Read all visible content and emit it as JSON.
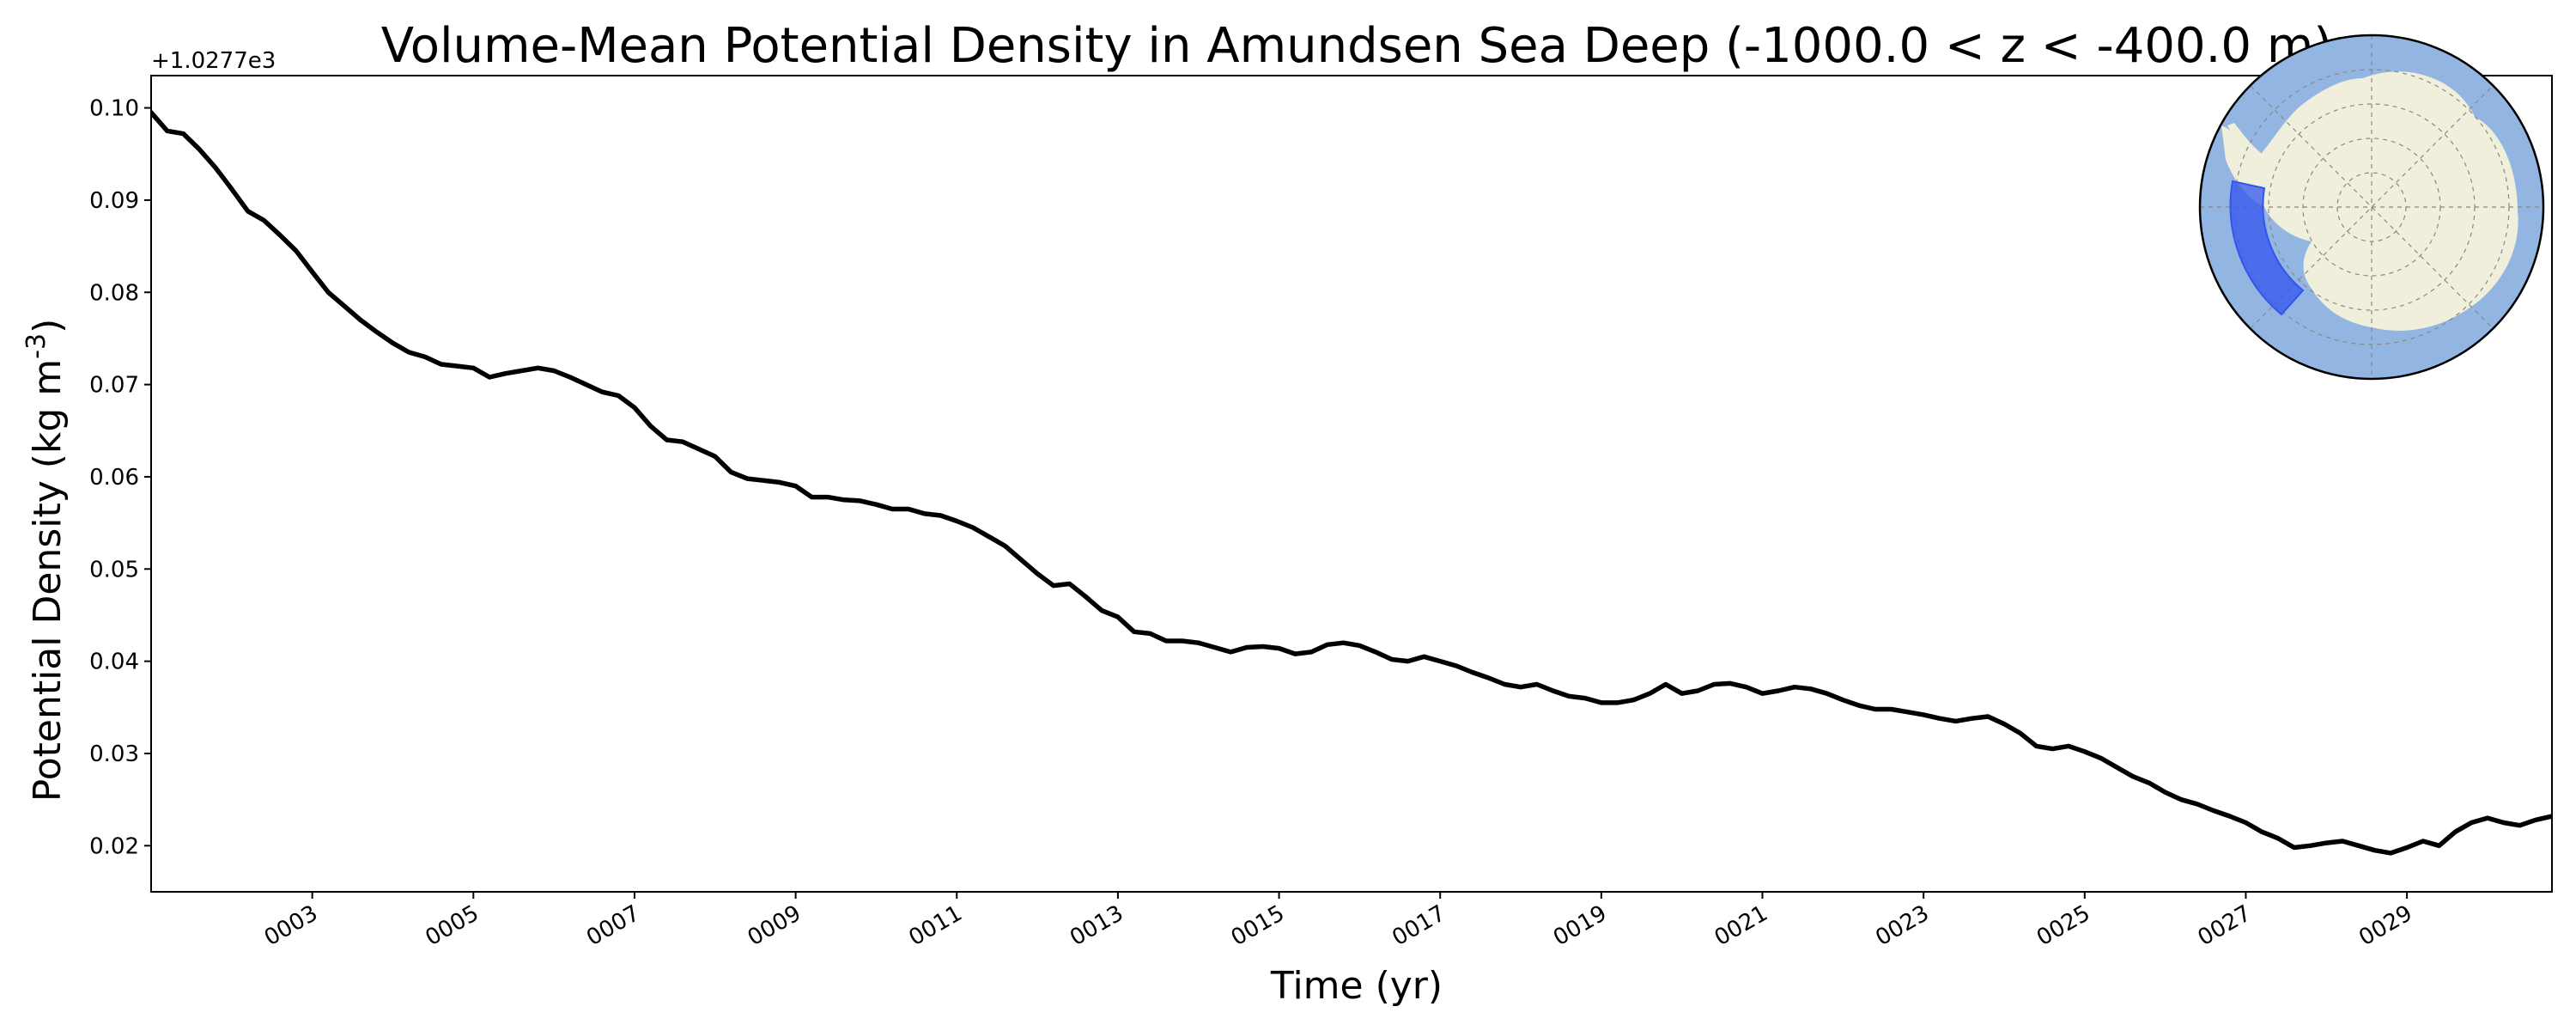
{
  "chart_data": {
    "type": "line",
    "title": "Volume-Mean Potential Density in Amundsen Sea Deep (-1000.0 < z < -400.0 m)",
    "xlabel": "Time (yr)",
    "ylabel": "Potential Density (kg m",
    "ylabel_sup": "-3",
    "ylabel_end": ")",
    "y_offset_label": "+1.0277e3",
    "y_offset": 1027.7,
    "xlim": [
      1.0,
      30.8
    ],
    "ylim": [
      0.015,
      0.1035
    ],
    "x_ticks": [
      3,
      5,
      7,
      9,
      11,
      13,
      15,
      17,
      19,
      21,
      23,
      25,
      27,
      29
    ],
    "x_tick_labels": [
      "0003",
      "0005",
      "0007",
      "0009",
      "0011",
      "0013",
      "0015",
      "0017",
      "0019",
      "0021",
      "0023",
      "0025",
      "0027",
      "0029"
    ],
    "y_ticks": [
      0.02,
      0.03,
      0.04,
      0.05,
      0.06,
      0.07,
      0.08,
      0.09,
      0.1
    ],
    "y_tick_labels": [
      "0.02",
      "0.03",
      "0.04",
      "0.05",
      "0.06",
      "0.07",
      "0.08",
      "0.09",
      "0.10"
    ],
    "grid": false,
    "line_color": "#000000",
    "series": [
      {
        "x": [
          1.0,
          1.2,
          1.4,
          1.6,
          1.8,
          2.0,
          2.2,
          2.4,
          2.6,
          2.8,
          3.0,
          3.2,
          3.4,
          3.6,
          3.8,
          4.0,
          4.2,
          4.4,
          4.6,
          4.8,
          5.0,
          5.2,
          5.4,
          5.6,
          5.8,
          6.0,
          6.2,
          6.4,
          6.6,
          6.8,
          7.0,
          7.2,
          7.4,
          7.6,
          7.8,
          8.0,
          8.2,
          8.4,
          8.6,
          8.8,
          9.0,
          9.2,
          9.4,
          9.6,
          9.8,
          10.0,
          10.2,
          10.4,
          10.6,
          10.8,
          11.0,
          11.2,
          11.4,
          11.6,
          11.8,
          12.0,
          12.2,
          12.4,
          12.6,
          12.8,
          13.0,
          13.2,
          13.4,
          13.6,
          13.8,
          14.0,
          14.2,
          14.4,
          14.6,
          14.8,
          15.0,
          15.2,
          15.4,
          15.6,
          15.8,
          16.0,
          16.2,
          16.4,
          16.6,
          16.8,
          17.0,
          17.2,
          17.4,
          17.6,
          17.8,
          18.0,
          18.2,
          18.4,
          18.6,
          18.8,
          19.0,
          19.2,
          19.4,
          19.6,
          19.8,
          20.0,
          20.2,
          20.4,
          20.6,
          20.8,
          21.0,
          21.2,
          21.4,
          21.6,
          21.8,
          22.0,
          22.2,
          22.4,
          22.6,
          22.8,
          23.0,
          23.2,
          23.4,
          23.6,
          23.8,
          24.0,
          24.2,
          24.4,
          24.6,
          24.8,
          25.0,
          25.2,
          25.4,
          25.6,
          25.8,
          26.0,
          26.2,
          26.4,
          26.6,
          26.8,
          27.0,
          27.2,
          27.4,
          27.6,
          27.8,
          28.0,
          28.2,
          28.4,
          28.6,
          28.8,
          29.0,
          29.2,
          29.4,
          29.6,
          29.8,
          30.0,
          30.2,
          30.4,
          30.6,
          30.8
        ],
        "y": [
          0.0995,
          0.0975,
          0.0972,
          0.0955,
          0.0935,
          0.0912,
          0.0888,
          0.0878,
          0.0862,
          0.0845,
          0.0822,
          0.08,
          0.0785,
          0.077,
          0.0757,
          0.0745,
          0.0735,
          0.073,
          0.0722,
          0.072,
          0.0718,
          0.0708,
          0.0712,
          0.0715,
          0.0718,
          0.0715,
          0.0708,
          0.07,
          0.0692,
          0.0688,
          0.0675,
          0.0655,
          0.064,
          0.0638,
          0.063,
          0.0622,
          0.0605,
          0.0598,
          0.0596,
          0.0594,
          0.059,
          0.0578,
          0.0578,
          0.0575,
          0.0574,
          0.057,
          0.0565,
          0.0565,
          0.056,
          0.0558,
          0.0552,
          0.0545,
          0.0535,
          0.0525,
          0.051,
          0.0495,
          0.0482,
          0.0484,
          0.047,
          0.0455,
          0.0448,
          0.0432,
          0.043,
          0.0422,
          0.0422,
          0.042,
          0.0415,
          0.041,
          0.0415,
          0.0416,
          0.0414,
          0.0408,
          0.041,
          0.0418,
          0.042,
          0.0417,
          0.041,
          0.0402,
          0.04,
          0.0405,
          0.04,
          0.0395,
          0.0388,
          0.0382,
          0.0375,
          0.0372,
          0.0375,
          0.0368,
          0.0362,
          0.036,
          0.0355,
          0.0355,
          0.0358,
          0.0365,
          0.0375,
          0.0365,
          0.0368,
          0.0375,
          0.0376,
          0.0372,
          0.0365,
          0.0368,
          0.0372,
          0.037,
          0.0365,
          0.0358,
          0.0352,
          0.0348,
          0.0348,
          0.0345,
          0.0342,
          0.0338,
          0.0335,
          0.0338,
          0.034,
          0.0332,
          0.0322,
          0.0308,
          0.0305,
          0.0308,
          0.0302,
          0.0295,
          0.0285,
          0.0275,
          0.0268,
          0.0258,
          0.025,
          0.0245,
          0.0238,
          0.0232,
          0.0225,
          0.0215,
          0.0208,
          0.0198,
          0.02,
          0.0203,
          0.0205,
          0.02,
          0.0195,
          0.0192,
          0.0198,
          0.0205,
          0.02,
          0.0215,
          0.0225,
          0.023,
          0.0225,
          0.0222,
          0.0228,
          0.0232
        ]
      }
    ]
  },
  "inset_map": {
    "ocean_color": "#93b5e2",
    "land_color": "#efefdb",
    "region_color": "#3355ee"
  }
}
